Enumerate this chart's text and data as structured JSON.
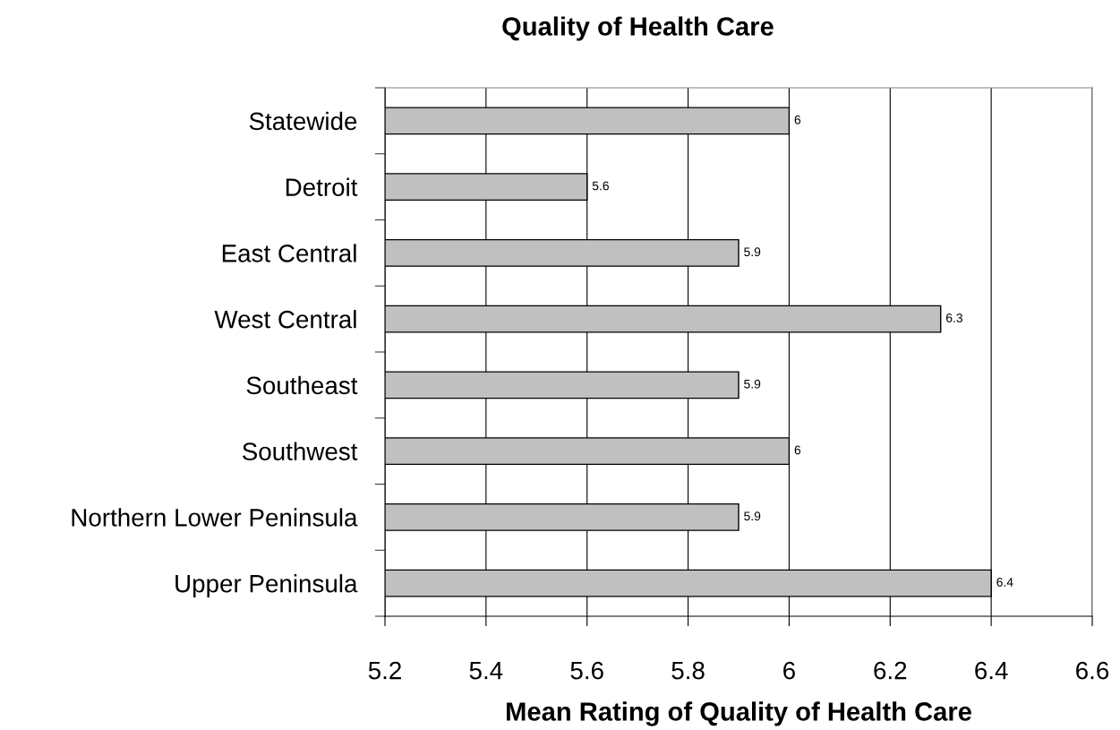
{
  "chart_data": {
    "type": "bar",
    "orientation": "horizontal",
    "title": "Quality of Health Care",
    "xlabel": "Mean Rating of Quality of Health Care",
    "categories": [
      "Statewide",
      "Detroit",
      "East Central",
      "West Central",
      "Southeast",
      "Southwest",
      "Northern Lower Peninsula",
      "Upper Peninsula"
    ],
    "values": [
      6,
      5.6,
      5.9,
      6.3,
      5.9,
      6,
      5.9,
      6.4
    ],
    "color": "#c0c0c0",
    "xlim": [
      5.2,
      6.6
    ],
    "xticks": [
      5.2,
      5.4,
      5.6,
      5.8,
      6,
      6.2,
      6.4,
      6.6
    ],
    "grid": "x",
    "data_labels": true
  }
}
